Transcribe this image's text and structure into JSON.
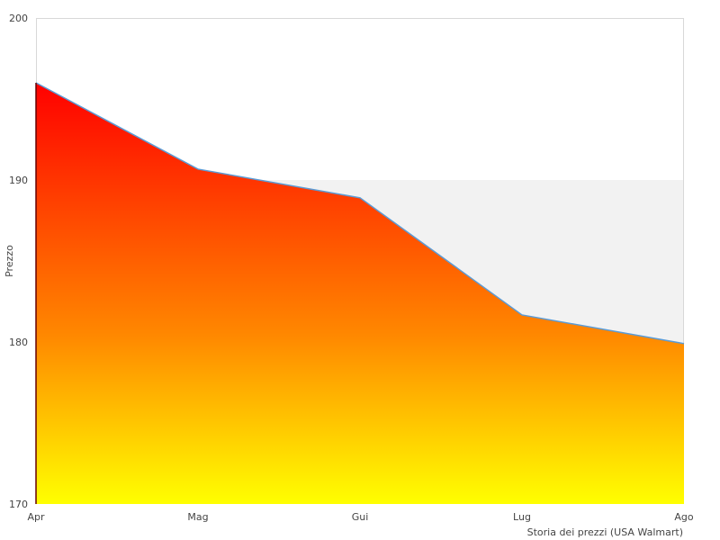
{
  "chart_data": {
    "type": "area",
    "title": "",
    "xlabel": "Storia dei prezzi (USA Walmart)",
    "ylabel": "Prezzo",
    "categories": [
      "Apr",
      "Mag",
      "Gui",
      "Lug",
      "Ago"
    ],
    "series": [
      {
        "name": "Prezzo",
        "values": [
          196.0,
          190.67,
          188.9,
          181.67,
          179.9
        ]
      }
    ],
    "ylim": [
      170,
      200
    ],
    "yticks": [
      "170",
      "180",
      "190",
      "200"
    ],
    "band": [
      180,
      190
    ],
    "colors": {
      "line": "#5b9bd5",
      "fill_top": "#ff0000",
      "fill_mid": "#ff8800",
      "fill_bottom": "#ffff00",
      "band": "#f2f2f2",
      "border": "#d8d8d8"
    }
  }
}
